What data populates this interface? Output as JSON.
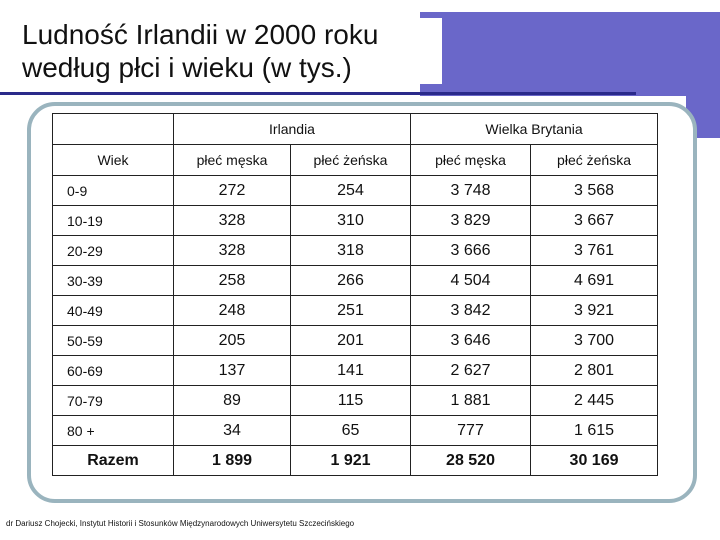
{
  "slide": {
    "title_line1": "Ludność Irlandii w 2000 roku",
    "title_line2": "według płci i wieku (w tys.)",
    "footer": "dr Dariusz Chojecki, Instytut Historii i Stosunków Międzynarodowych Uniwersytetu Szczecińskiego",
    "accent_color": "#6a67c9"
  },
  "table": {
    "group_headers": [
      "Irlandia",
      "Wielka Brytania"
    ],
    "column_headers": [
      "Wiek",
      "płeć męska",
      "płeć żeńska",
      "płeć męska",
      "płeć żeńska"
    ],
    "rows": [
      [
        "0-9",
        "272",
        "254",
        "3 748",
        "3 568"
      ],
      [
        "10-19",
        "328",
        "310",
        "3 829",
        "3 667"
      ],
      [
        "20-29",
        "328",
        "318",
        "3 666",
        "3 761"
      ],
      [
        "30-39",
        "258",
        "266",
        "4 504",
        "4 691"
      ],
      [
        "40-49",
        "248",
        "251",
        "3 842",
        "3 921"
      ],
      [
        "50-59",
        "205",
        "201",
        "3 646",
        "3 700"
      ],
      [
        "60-69",
        "137",
        "141",
        "2 627",
        "2 801"
      ],
      [
        "70-79",
        "89",
        "115",
        "1 881",
        "2 445"
      ],
      [
        "80 +",
        "34",
        "65",
        "777",
        "1 615"
      ]
    ],
    "total_row": [
      "Razem",
      "1 899",
      "1 921",
      "28 520",
      "30 169"
    ]
  }
}
